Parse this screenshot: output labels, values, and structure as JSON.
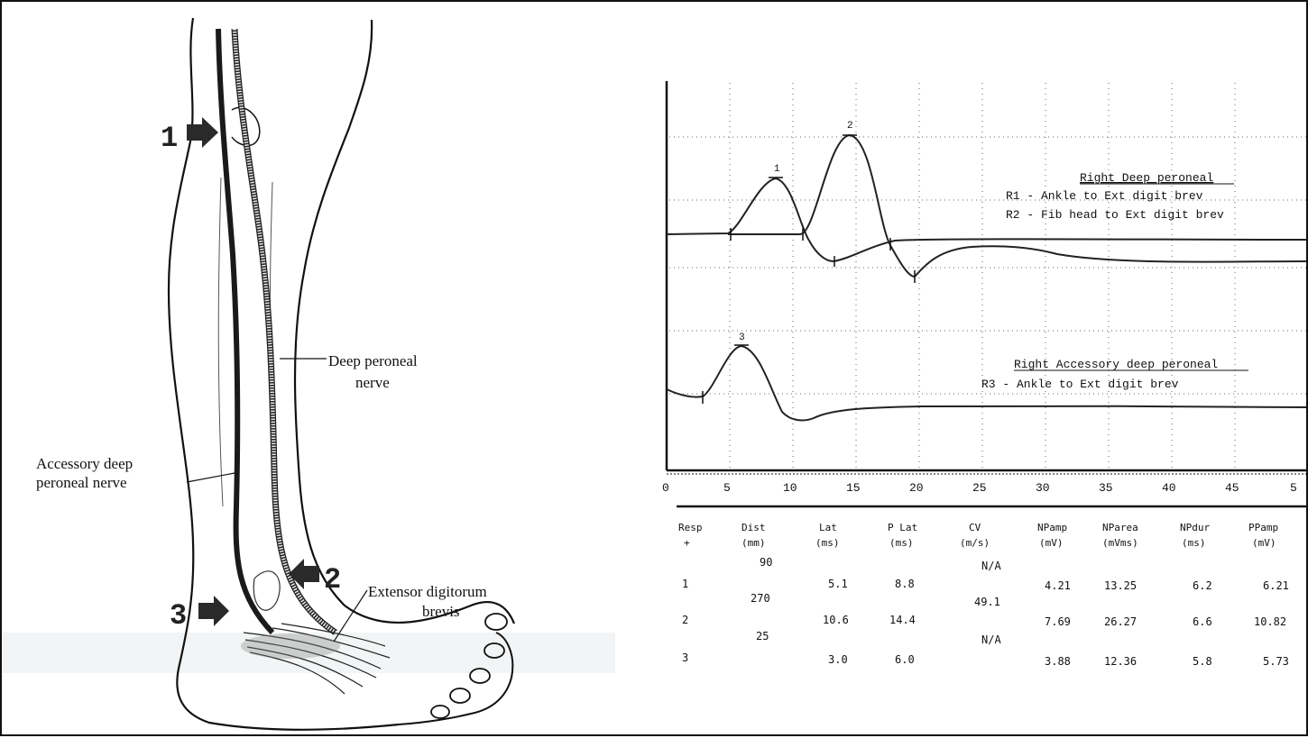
{
  "diagram": {
    "markers": {
      "m1": "1",
      "m2": "2",
      "m3": "3"
    },
    "labels": {
      "deep_line1": "Deep peroneal",
      "deep_line2": "nerve",
      "acc_line1": "Accessory deep",
      "acc_line2": "peroneal nerve",
      "edb_line1": "Extensor digitorum",
      "edb_line2": "brevis"
    }
  },
  "traces": {
    "legend_top": {
      "title": "Right Deep peroneal",
      "r1": "R1 - Ankle to Ext digit brev",
      "r2": "R2 - Fib head to Ext digit brev"
    },
    "legend_bottom": {
      "title": "Right Accessory deep peroneal",
      "r3": "R3 - Ankle to Ext digit brev"
    },
    "peak_labels": [
      "1",
      "2",
      "3"
    ],
    "x_ticks": [
      "0",
      "5",
      "10",
      "15",
      "20",
      "25",
      "30",
      "35",
      "40",
      "45",
      "5"
    ]
  },
  "table": {
    "headers": [
      {
        "top": "Resp",
        "bot": "+"
      },
      {
        "top": "Dist",
        "bot": "(mm)"
      },
      {
        "top": "Lat",
        "bot": "(ms)"
      },
      {
        "top": "P Lat",
        "bot": "(ms)"
      },
      {
        "top": "CV",
        "bot": "(m/s)"
      },
      {
        "top": "NPamp",
        "bot": "(mV)"
      },
      {
        "top": "NParea",
        "bot": "(mVms)"
      },
      {
        "top": "NPdur",
        "bot": "(ms)"
      },
      {
        "top": "PPamp",
        "bot": "(mV)"
      }
    ],
    "segments": [
      {
        "dist": "90",
        "cv": "N/A"
      },
      {
        "dist": "270",
        "cv": "49.1"
      },
      {
        "dist": "25",
        "cv": "N/A"
      }
    ],
    "rows": [
      {
        "resp": "1",
        "lat": "5.1",
        "plat": "8.8",
        "npamp": "4.21",
        "nparea": "13.25",
        "npdur": "6.2",
        "ppamp": "6.21"
      },
      {
        "resp": "2",
        "lat": "10.6",
        "plat": "14.4",
        "npamp": "7.69",
        "nparea": "26.27",
        "npdur": "6.6",
        "ppamp": "10.82"
      },
      {
        "resp": "3",
        "lat": "3.0",
        "plat": "6.0",
        "npamp": "3.88",
        "nparea": "12.36",
        "npdur": "5.8",
        "ppamp": "5.73"
      }
    ]
  }
}
